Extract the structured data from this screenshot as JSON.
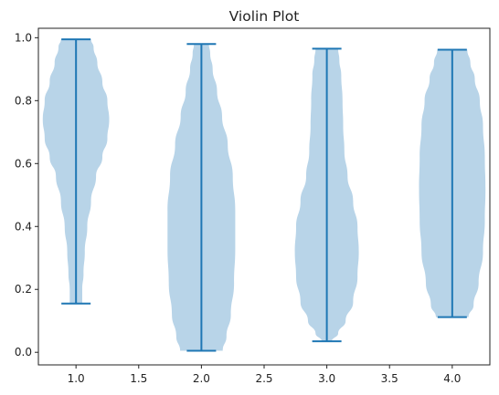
{
  "chart_data": {
    "type": "violin",
    "title": "Violin Plot",
    "xlabel": "",
    "ylabel": "",
    "xlim": [
      0.7,
      4.3
    ],
    "ylim": [
      -0.04,
      1.03
    ],
    "x_ticks": [
      "1.0",
      "1.5",
      "2.0",
      "2.5",
      "3.0",
      "3.5",
      "4.0"
    ],
    "x_tick_values": [
      1.0,
      1.5,
      2.0,
      2.5,
      3.0,
      3.5,
      4.0
    ],
    "y_ticks": [
      "0.0",
      "0.2",
      "0.4",
      "0.6",
      "0.8",
      "1.0"
    ],
    "y_tick_values": [
      0.0,
      0.2,
      0.4,
      0.6,
      0.8,
      1.0
    ],
    "grid": false,
    "colors": {
      "body": "#b8d4e8",
      "stat_line": "#1f77b4"
    },
    "violins": [
      {
        "position": 1.0,
        "min": 0.155,
        "max": 0.995,
        "density": [
          {
            "y": 0.155,
            "w": 0.05
          },
          {
            "y": 0.2,
            "w": 0.05
          },
          {
            "y": 0.25,
            "w": 0.06
          },
          {
            "y": 0.32,
            "w": 0.07
          },
          {
            "y": 0.4,
            "w": 0.09
          },
          {
            "y": 0.48,
            "w": 0.12
          },
          {
            "y": 0.56,
            "w": 0.16
          },
          {
            "y": 0.62,
            "w": 0.21
          },
          {
            "y": 0.68,
            "w": 0.25
          },
          {
            "y": 0.74,
            "w": 0.265
          },
          {
            "y": 0.8,
            "w": 0.25
          },
          {
            "y": 0.86,
            "w": 0.21
          },
          {
            "y": 0.92,
            "w": 0.17
          },
          {
            "y": 0.97,
            "w": 0.14
          },
          {
            "y": 0.995,
            "w": 0.12
          }
        ]
      },
      {
        "position": 2.0,
        "min": 0.005,
        "max": 0.98,
        "density": [
          {
            "y": 0.005,
            "w": 0.17
          },
          {
            "y": 0.05,
            "w": 0.2
          },
          {
            "y": 0.12,
            "w": 0.235
          },
          {
            "y": 0.22,
            "w": 0.26
          },
          {
            "y": 0.33,
            "w": 0.27
          },
          {
            "y": 0.45,
            "w": 0.27
          },
          {
            "y": 0.56,
            "w": 0.25
          },
          {
            "y": 0.66,
            "w": 0.21
          },
          {
            "y": 0.75,
            "w": 0.165
          },
          {
            "y": 0.83,
            "w": 0.125
          },
          {
            "y": 0.9,
            "w": 0.09
          },
          {
            "y": 0.95,
            "w": 0.07
          },
          {
            "y": 0.98,
            "w": 0.06
          }
        ]
      },
      {
        "position": 3.0,
        "min": 0.035,
        "max": 0.965,
        "density": [
          {
            "y": 0.035,
            "w": 0.04
          },
          {
            "y": 0.06,
            "w": 0.09
          },
          {
            "y": 0.1,
            "w": 0.15
          },
          {
            "y": 0.16,
            "w": 0.21
          },
          {
            "y": 0.24,
            "w": 0.245
          },
          {
            "y": 0.32,
            "w": 0.255
          },
          {
            "y": 0.4,
            "w": 0.245
          },
          {
            "y": 0.48,
            "w": 0.21
          },
          {
            "y": 0.56,
            "w": 0.165
          },
          {
            "y": 0.64,
            "w": 0.14
          },
          {
            "y": 0.72,
            "w": 0.13
          },
          {
            "y": 0.8,
            "w": 0.125
          },
          {
            "y": 0.88,
            "w": 0.115
          },
          {
            "y": 0.93,
            "w": 0.1
          },
          {
            "y": 0.965,
            "w": 0.09
          }
        ]
      },
      {
        "position": 4.0,
        "min": 0.112,
        "max": 0.962,
        "density": [
          {
            "y": 0.112,
            "w": 0.13
          },
          {
            "y": 0.15,
            "w": 0.17
          },
          {
            "y": 0.22,
            "w": 0.21
          },
          {
            "y": 0.32,
            "w": 0.245
          },
          {
            "y": 0.42,
            "w": 0.26
          },
          {
            "y": 0.52,
            "w": 0.265
          },
          {
            "y": 0.62,
            "w": 0.26
          },
          {
            "y": 0.72,
            "w": 0.245
          },
          {
            "y": 0.8,
            "w": 0.22
          },
          {
            "y": 0.87,
            "w": 0.18
          },
          {
            "y": 0.92,
            "w": 0.145
          },
          {
            "y": 0.962,
            "w": 0.12
          }
        ]
      }
    ]
  }
}
